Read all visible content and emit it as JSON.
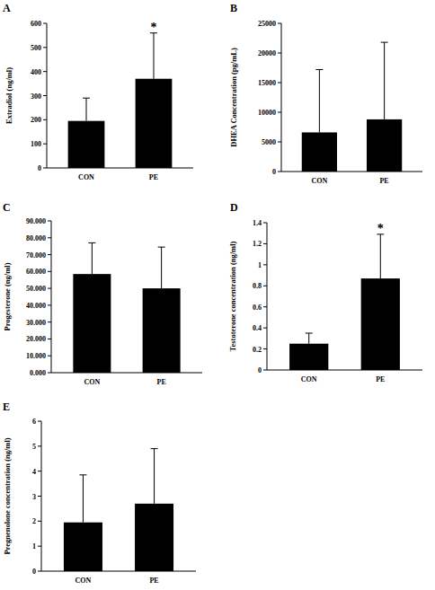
{
  "chart_data": [
    {
      "type": "bar",
      "title": "A",
      "y_label": "Extradiol (ng/ml)",
      "categories": [
        "CON",
        "PE"
      ],
      "values": [
        195,
        370
      ],
      "errors": [
        95,
        190
      ],
      "color": "#000000",
      "ylim": [
        0,
        600
      ],
      "yticks": [
        0,
        100,
        200,
        300,
        400,
        500,
        600
      ],
      "annotations": [
        {
          "text": "*",
          "category": "PE"
        }
      ]
    },
    {
      "type": "bar",
      "title": "B",
      "y_label": "DHEA Concentration  (pg/mL)",
      "categories": [
        "CON",
        "PE"
      ],
      "values": [
        6600,
        8800
      ],
      "errors": [
        10600,
        13000
      ],
      "color": "#000000",
      "ylim": [
        0,
        25000
      ],
      "yticks": [
        0,
        5000,
        10000,
        15000,
        20000,
        25000
      ]
    },
    {
      "type": "bar",
      "title": "C",
      "y_label": "Progesterone (ng/ml)",
      "categories": [
        "CON",
        "PE"
      ],
      "values": [
        58.5,
        50
      ],
      "errors": [
        18.5,
        24.5
      ],
      "color": "#000000",
      "ylim": [
        0,
        90
      ],
      "yticks": [
        {
          "value": 0,
          "label": "0.000"
        },
        {
          "value": 10,
          "label": "10.000"
        },
        {
          "value": 20,
          "label": "20.000"
        },
        {
          "value": 30,
          "label": "30.000"
        },
        {
          "value": 40,
          "label": "40.000"
        },
        {
          "value": 50,
          "label": "50.000"
        },
        {
          "value": 60,
          "label": "60.000"
        },
        {
          "value": 70,
          "label": "70.000"
        },
        {
          "value": 80,
          "label": "80.000"
        },
        {
          "value": 90,
          "label": "90.000"
        }
      ]
    },
    {
      "type": "bar",
      "title": "D",
      "y_label": "Testoterone concentration  (ng/ml)",
      "categories": [
        "CON",
        "PE"
      ],
      "values": [
        0.25,
        0.87
      ],
      "errors": [
        0.1,
        0.42
      ],
      "color": "#000000",
      "ylim": [
        0,
        1.4
      ],
      "yticks": [
        0,
        0.2,
        0.4,
        0.6,
        0.8,
        1,
        1.2,
        1.4
      ],
      "annotations": [
        {
          "text": "*",
          "category": "PE"
        }
      ]
    },
    {
      "type": "bar",
      "title": "E",
      "y_label": "Pregnenolone concentration (ng/ml)",
      "categories": [
        "CON",
        "PE"
      ],
      "values": [
        1.95,
        2.7
      ],
      "errors": [
        1.9,
        2.2
      ],
      "color": "#000000",
      "ylim": [
        0,
        6
      ],
      "yticks": [
        0,
        1,
        2,
        3,
        4,
        5,
        6
      ]
    }
  ]
}
